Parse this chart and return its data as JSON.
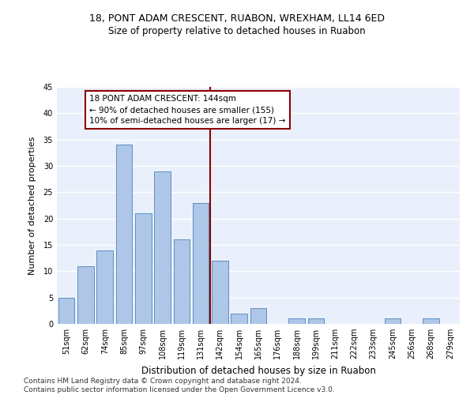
{
  "title1": "18, PONT ADAM CRESCENT, RUABON, WREXHAM, LL14 6ED",
  "title2": "Size of property relative to detached houses in Ruabon",
  "xlabel": "Distribution of detached houses by size in Ruabon",
  "ylabel": "Number of detached properties",
  "categories": [
    "51sqm",
    "62sqm",
    "74sqm",
    "85sqm",
    "97sqm",
    "108sqm",
    "119sqm",
    "131sqm",
    "142sqm",
    "154sqm",
    "165sqm",
    "176sqm",
    "188sqm",
    "199sqm",
    "211sqm",
    "222sqm",
    "233sqm",
    "245sqm",
    "256sqm",
    "268sqm",
    "279sqm"
  ],
  "values": [
    5,
    11,
    14,
    34,
    21,
    29,
    16,
    23,
    12,
    2,
    3,
    0,
    1,
    1,
    0,
    0,
    0,
    1,
    0,
    1,
    0
  ],
  "bar_color": "#aec6e8",
  "bar_edge_color": "#5a8fc2",
  "vline_index": 8,
  "vline_color": "#8b0000",
  "annotation_text": "18 PONT ADAM CRESCENT: 144sqm\n← 90% of detached houses are smaller (155)\n10% of semi-detached houses are larger (17) →",
  "annotation_box_color": "#ffffff",
  "annotation_box_edge": "#8b0000",
  "footnote": "Contains HM Land Registry data © Crown copyright and database right 2024.\nContains public sector information licensed under the Open Government Licence v3.0.",
  "ylim": [
    0,
    45
  ],
  "yticks": [
    0,
    5,
    10,
    15,
    20,
    25,
    30,
    35,
    40,
    45
  ],
  "background_color": "#eaf0fb",
  "grid_color": "#ffffff",
  "title1_fontsize": 9,
  "title2_fontsize": 8.5,
  "xlabel_fontsize": 8.5,
  "ylabel_fontsize": 8,
  "tick_fontsize": 7,
  "annotation_fontsize": 7.5,
  "footnote_fontsize": 6.5
}
